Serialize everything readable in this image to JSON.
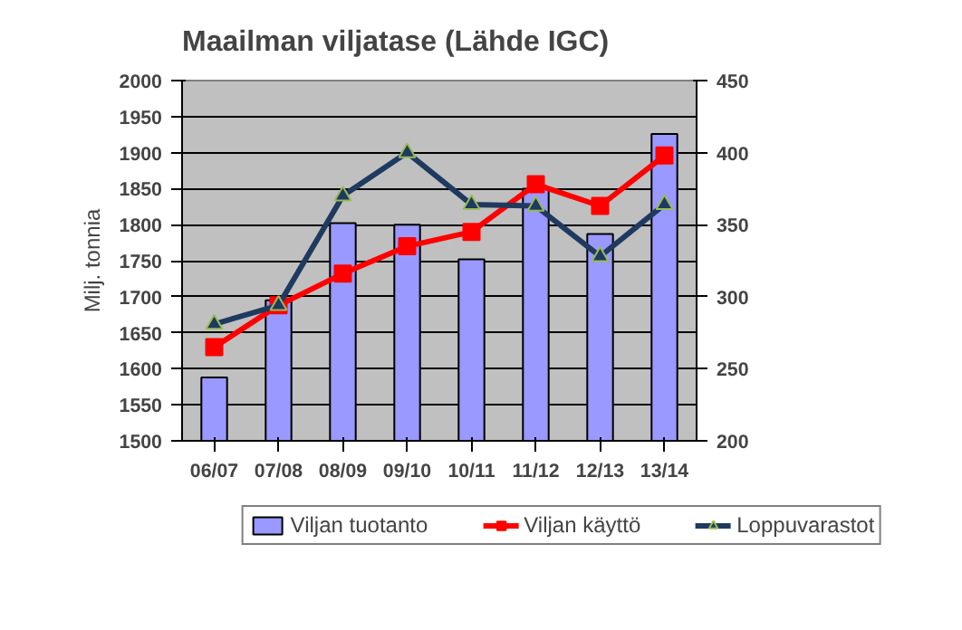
{
  "chart_data": {
    "type": "bar",
    "title": "Maailman viljatase (Lähde IGC)",
    "ylabel": "Milj. tonnia",
    "categories": [
      "06/07",
      "07/08",
      "08/09",
      "09/10",
      "10/11",
      "11/12",
      "12/13",
      "13/14"
    ],
    "series": [
      {
        "name": "Viljan tuotanto",
        "color": "#9999ff",
        "values": [
          1588,
          1695,
          1802,
          1800,
          1752,
          1850,
          1787,
          1926
        ]
      },
      {
        "name": "Viljan käyttö",
        "type": "line",
        "color": "#ff0000",
        "marker": "square",
        "values": [
          1630,
          1688,
          1732,
          1770,
          1790,
          1856,
          1826,
          1896
        ]
      },
      {
        "name": "Loppuvarastot",
        "type": "line",
        "color": "#1f3a5f",
        "marker": "triangle",
        "axis": "y2",
        "values": [
          281,
          294,
          370,
          400,
          364,
          363,
          328,
          364
        ]
      }
    ],
    "ylim": [
      1500,
      2000
    ],
    "yticks": [
      1500,
      1550,
      1600,
      1650,
      1700,
      1750,
      1800,
      1850,
      1900,
      1950,
      2000
    ],
    "y2lim": [
      200,
      450
    ],
    "y2ticks": [
      200,
      250,
      300,
      350,
      400,
      450
    ],
    "grid": "y",
    "legend": "bottom"
  }
}
